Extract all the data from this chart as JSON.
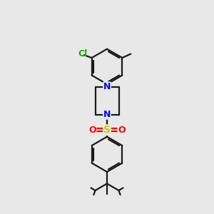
{
  "bg_color": "#e8e8e8",
  "bond_color": "#1a1a1a",
  "n_color": "#0000ff",
  "o_color": "#ff0000",
  "s_color": "#cccc00",
  "cl_color": "#00bb00",
  "lw": 1.6,
  "figsize": [
    3.0,
    3.0
  ],
  "dpi": 100,
  "xlim": [
    0,
    10
  ],
  "ylim": [
    0,
    10
  ]
}
